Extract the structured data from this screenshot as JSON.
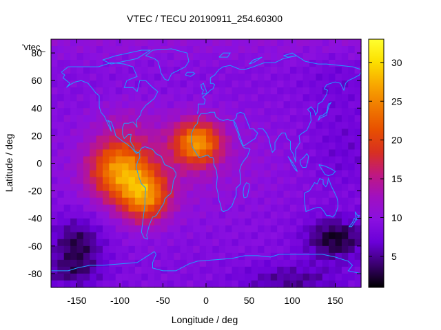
{
  "chart_data": {
    "type": "heatmap",
    "title": "VTEC / TECU 20190911_254.60300",
    "xlabel": "Longitude / deg",
    "ylabel": "Latitude / deg",
    "key_label": "'vtec_",
    "xlim": [
      -180,
      180
    ],
    "ylim": [
      -90,
      90
    ],
    "xticks": [
      -150,
      -100,
      -50,
      0,
      50,
      100,
      150
    ],
    "yticks": [
      80,
      60,
      40,
      20,
      0,
      -20,
      -40,
      -60,
      -80
    ],
    "colorbar": {
      "range": [
        1,
        33
      ],
      "ticks": [
        5,
        10,
        15,
        20,
        25,
        30
      ],
      "palette": [
        "#000000",
        "#3a006e",
        "#6a00d8",
        "#8a10e0",
        "#a010c0",
        "#c01880",
        "#d83020",
        "#e85000",
        "#f07a00",
        "#f8a800",
        "#fce000",
        "#ffff30"
      ]
    },
    "grid": false,
    "map_overlay": "coastlines",
    "coastline_color": "#1ea0ff",
    "features": [
      {
        "name": "baseline",
        "value": 9
      },
      {
        "name": "south-america-peak",
        "lon": -100,
        "lat": -5,
        "value": 24
      },
      {
        "name": "africa-peak",
        "lon": -10,
        "lat": 15,
        "value": 24
      },
      {
        "name": "south-atlantic-peak",
        "lon": -70,
        "lat": -25,
        "value": 24
      },
      {
        "name": "north-polar",
        "lat": 80,
        "value": 10
      },
      {
        "name": "south-pacific-low",
        "lon": -150,
        "lat": -60,
        "value": 3
      },
      {
        "name": "australia-south-low",
        "lon": 150,
        "lat": -55,
        "value": 2
      }
    ]
  }
}
